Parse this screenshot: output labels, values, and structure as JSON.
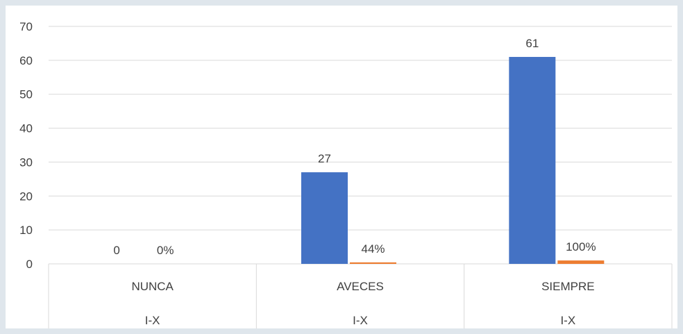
{
  "chart_data": {
    "type": "bar",
    "categories": [
      "NUNCA",
      "AVECES",
      "SIEMPRE"
    ],
    "group_labels": [
      "I-X",
      "I-X",
      "I-X"
    ],
    "series": [
      {
        "values": [
          0,
          27,
          61
        ],
        "labels": [
          "0",
          "27",
          "61"
        ],
        "color": "#4472c4"
      },
      {
        "values": [
          0,
          0.44,
          1.0
        ],
        "labels": [
          "0%",
          "44%",
          "100%"
        ],
        "color": "#ed7d31"
      }
    ],
    "y_ticks": [
      "0",
      "10",
      "20",
      "30",
      "40",
      "50",
      "60",
      "70"
    ],
    "ylim": [
      0,
      70
    ],
    "grid": true,
    "legend": "none",
    "title": "",
    "xlabel": "",
    "ylabel": ""
  }
}
